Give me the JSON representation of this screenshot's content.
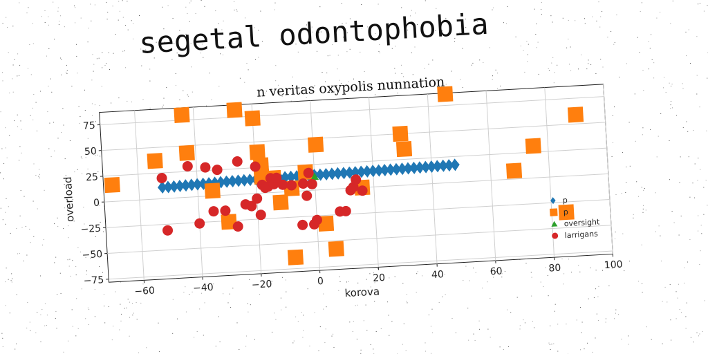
{
  "heading": "segetal odontophobia",
  "chart_data": {
    "type": "scatter",
    "title": "n veritas oxypolis nunnation",
    "xlabel": "korova",
    "ylabel": "overload",
    "xlim": [
      -72,
      100
    ],
    "ylim": [
      -78,
      87
    ],
    "xticks": [
      -60,
      -40,
      -20,
      0,
      20,
      40,
      60,
      80,
      100
    ],
    "yticks": [
      -75,
      -50,
      -25,
      0,
      25,
      50,
      75
    ],
    "xtick_labels": [
      "−60",
      "−40",
      "−20",
      "0",
      "20",
      "40",
      "60",
      "80",
      "100"
    ],
    "ytick_labels": [
      "−75",
      "−50",
      "−25",
      "0",
      "25",
      "50",
      "75"
    ],
    "grid": true,
    "legend_position": "lower-right",
    "rotation_deg": -3.2,
    "series": [
      {
        "name": "p",
        "marker": "diamond",
        "color": "#1f77b4",
        "x": [
          -52,
          -50,
          -48,
          -46,
          -44,
          -42,
          -40,
          -38,
          -36,
          -34,
          -32,
          -30,
          -28,
          -26,
          -24,
          -22,
          -20,
          -18,
          -16,
          -14,
          -12,
          -10,
          -8,
          -6,
          -4,
          -2,
          0,
          2,
          4,
          6,
          8,
          10,
          12,
          14,
          16,
          18,
          20,
          22,
          24,
          26,
          28,
          30,
          32,
          34,
          36,
          38,
          40,
          42,
          44,
          46,
          48
        ],
        "y": [
          11,
          11,
          11.2,
          11.4,
          11.6,
          11.8,
          12,
          12.2,
          12.4,
          12.6,
          12.8,
          13,
          13.2,
          13.3,
          13.4,
          13.5,
          13.6,
          13.7,
          13.8,
          13.9,
          14,
          14.1,
          14.2,
          14.3,
          14.4,
          14.5,
          14.6,
          14.7,
          14.8,
          14.9,
          15,
          15,
          15.1,
          15.2,
          15.3,
          15.4,
          15.5,
          15.6,
          15.7,
          15.8,
          15.9,
          16,
          16.1,
          16.2,
          16.3,
          16.4,
          16.5,
          16.6,
          16.7,
          16.8,
          17
        ]
      },
      {
        "name": "p",
        "marker": "square",
        "color": "#ff7f0e",
        "x": [
          -69,
          -54,
          -44,
          -43,
          -35,
          -30,
          -26,
          -20,
          -19,
          -18,
          -18,
          -14,
          -12,
          -8,
          -8,
          -3,
          1,
          3,
          6,
          16,
          30,
          31,
          46,
          68,
          75,
          85,
          90
        ],
        "y": [
          16,
          37,
          80,
          43,
          5,
          -26,
          82,
          73,
          40,
          27,
          16,
          14,
          -10,
          3,
          -64,
          18,
          44,
          -33,
          -58,
          0,
          50,
          35,
          86,
          8,
          31,
          -35,
          59
        ]
      },
      {
        "name": "oversight",
        "marker": "triangle",
        "color": "#2ca02c",
        "x": [
          0
        ],
        "y": [
          13
        ]
      },
      {
        "name": "larrigans",
        "marker": "circle",
        "color": "#d62728",
        "x": [
          -52,
          -51,
          -43,
          -40,
          -37,
          -35,
          -33,
          -31,
          -27,
          -26,
          -24,
          -22,
          -20,
          -20,
          -19,
          -18,
          -17,
          -16,
          -15,
          -14,
          -13,
          -11,
          -8,
          -5,
          -4,
          -3,
          -2,
          -1,
          -1,
          0,
          8,
          10,
          12,
          13,
          14,
          16
        ],
        "y": [
          20,
          -31,
          30,
          -26,
          28,
          -15,
          25,
          -15,
          -31,
          32,
          -10,
          -12,
          -5,
          26,
          -21,
          8,
          5,
          6,
          14,
          8,
          14,
          7,
          6,
          -33,
          7,
          -5,
          17,
          -33,
          6,
          -29,
          -22,
          -22,
          -2,
          1,
          8,
          -3
        ]
      }
    ]
  }
}
